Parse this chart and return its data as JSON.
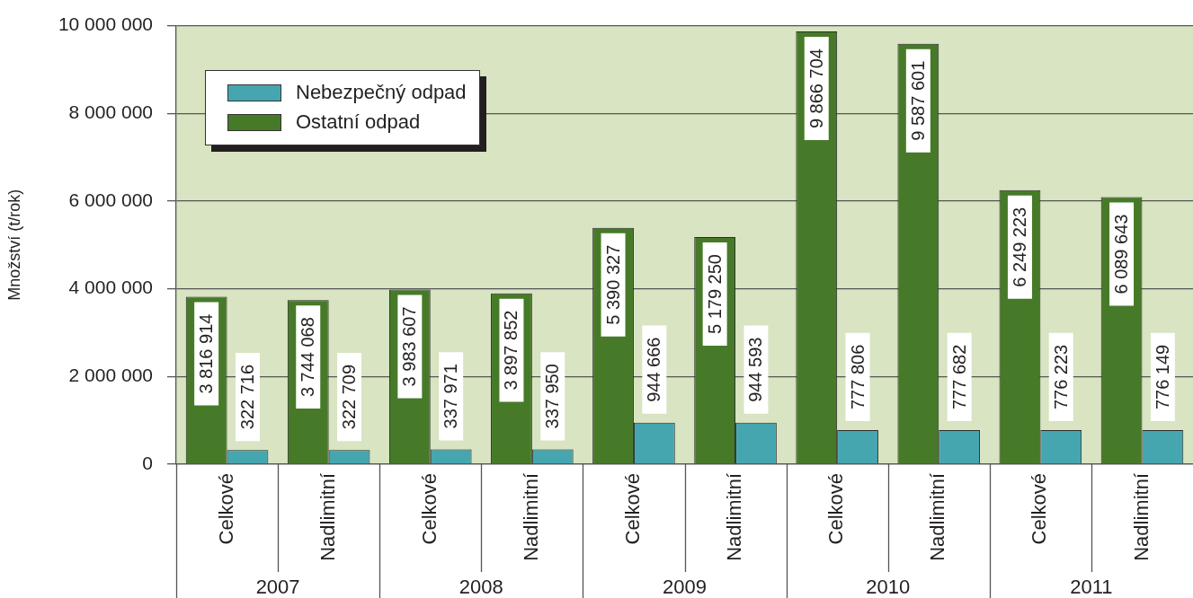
{
  "chart_data": {
    "type": "bar",
    "ylabel": "Množství (t/rok)",
    "categories": [
      "Celkové",
      "Nadlimitní",
      "Celkové",
      "Nadlimitní",
      "Celkové",
      "Nadlimitní",
      "Celkové",
      "Nadlimitní",
      "Celkové",
      "Nadlimitní"
    ],
    "annotations": [
      "2007",
      "2008",
      "2009",
      "2010",
      "2011"
    ],
    "series": [
      {
        "name": "Ostatní odpad",
        "color": "#467a28",
        "values": [
          3816914,
          3744068,
          3983607,
          3897852,
          5390327,
          5179250,
          9866704,
          9587601,
          6249223,
          6089643
        ],
        "value_labels": [
          "3 816 914",
          "3 744 068",
          "3 983 607",
          "3 897 852",
          "5 390 327",
          "5 179 250",
          "9 866 704",
          "9 587 601",
          "6 249 223",
          "6 089 643"
        ]
      },
      {
        "name": "Nebezpečný odpad",
        "color": "#46a6b0",
        "values": [
          322716,
          322709,
          337971,
          337950,
          944666,
          944593,
          777806,
          777682,
          776223,
          776149
        ],
        "value_labels": [
          "322 716",
          "322 709",
          "337 971",
          "337 950",
          "944 666",
          "944 593",
          "777 806",
          "777 682",
          "776 223",
          "776 149"
        ]
      }
    ],
    "ylim": [
      0,
      10000000
    ],
    "yticks": [
      0,
      {
        "value": 2000000,
        "label": "2 000 000"
      },
      {
        "value": 4000000,
        "label": "4 000 000"
      },
      {
        "value": 6000000,
        "label": "6 000 000"
      },
      {
        "value": 8000000,
        "label": "8 000 000"
      },
      {
        "value": 10000000,
        "label": "10 000 000"
      }
    ],
    "grid": "y",
    "legend": "top left"
  }
}
